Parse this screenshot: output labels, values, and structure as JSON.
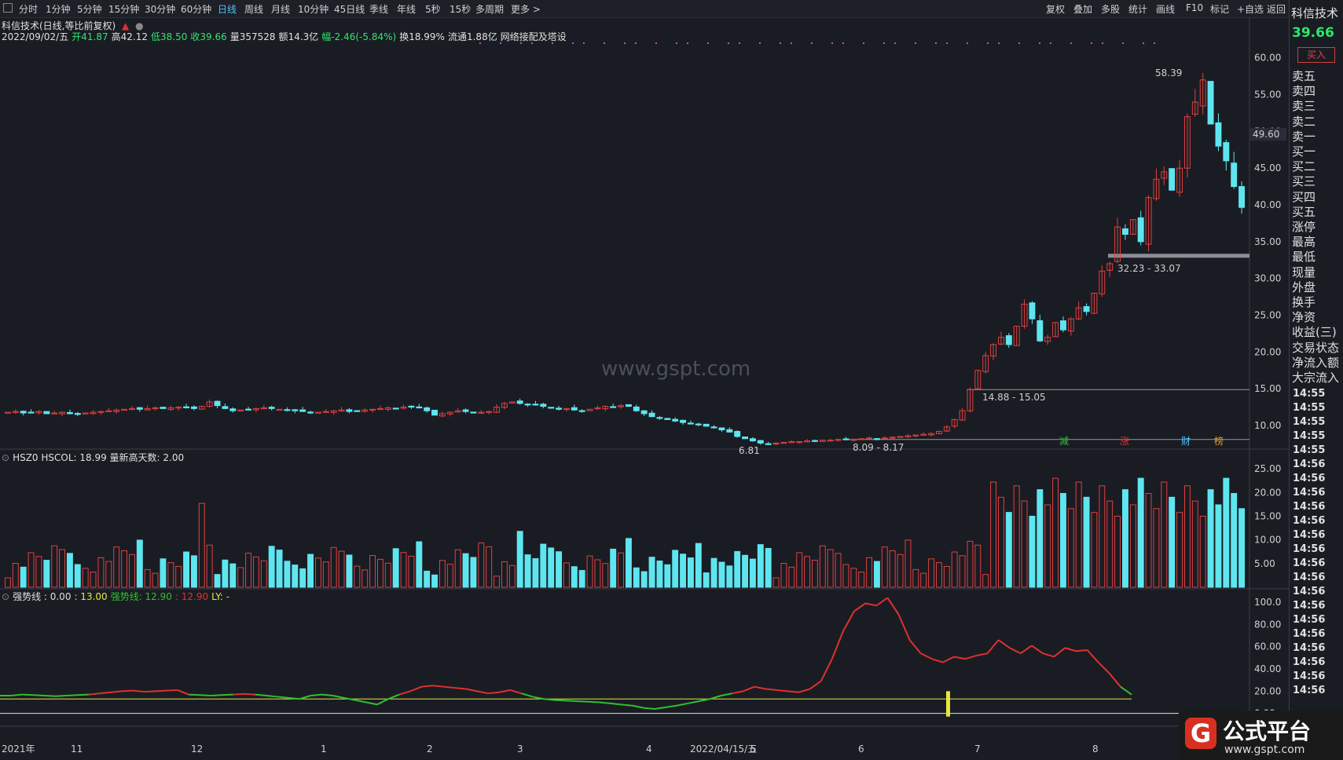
{
  "toolbar": {
    "periods": [
      "分时",
      "1分钟",
      "5分钟",
      "15分钟",
      "30分钟",
      "60分钟",
      "日线",
      "周线",
      "月线",
      "10分钟",
      "45日线",
      "季线",
      "年线",
      "5秒",
      "15秒",
      "多周期",
      "更多 >"
    ],
    "active_period": "日线",
    "right_tools": [
      "复权",
      "叠加",
      "多股",
      "统计",
      "画线",
      "F10",
      "标记",
      "+自选",
      "返回"
    ]
  },
  "stock": {
    "title": "科信技术(日线,等比前复权)",
    "date": "2022/09/02/五",
    "open_label": "开",
    "open": "41.87",
    "high_label": "高",
    "high": "42.12",
    "low_label": "低",
    "low": "38.50",
    "close_label": "收",
    "close": "39.66",
    "volume_label": "量",
    "volume": "357528",
    "amount_label": "额",
    "amount": "14.3亿",
    "change_label": "幅",
    "change": "-2.46(-5.84%)",
    "turnover_label": "换",
    "turnover": "18.99%",
    "float_label": "流通",
    "float": "1.88亿",
    "theme": "网络接配及塔设"
  },
  "main_chart": {
    "price_axis": [
      "60.00",
      "55.00",
      "50.00",
      "45.00",
      "40.00",
      "35.00",
      "30.00",
      "25.00",
      "20.00",
      "15.00",
      "10.00"
    ],
    "cursor_price": "49.60",
    "annotations": {
      "high_marker": "58.39",
      "low_marker": "6.81",
      "range_a": "8.09 - 8.17",
      "range_b": "14.88 - 15.05",
      "range_c": "32.23 - 33.07"
    },
    "event_tags": [
      "减",
      "涨",
      "财",
      "榜"
    ]
  },
  "volume_panel": {
    "header": "HSZ0  HSCOL: 18.99  量新高天数: 2.00",
    "axis": [
      "25.00",
      "20.00",
      "15.00",
      "10.00",
      "5.00"
    ]
  },
  "indicator_panel": {
    "header_a": "强势线 : 0.00",
    "header_b": ": 13.00",
    "header_c": "强势线: 12.90",
    "header_d": ": 12.90",
    "header_e": "LY: -",
    "axis": [
      "100.0",
      "80.00",
      "60.00",
      "40.00",
      "20.00",
      "0.00"
    ]
  },
  "time_axis": {
    "labels": [
      "2021年",
      "11",
      "12",
      "1",
      "2",
      "3",
      "4",
      "2022/04/15/五",
      "5",
      "6",
      "7",
      "8"
    ]
  },
  "right_panel": {
    "title": "科信技术",
    "price": "39.66",
    "buy_button": "买入",
    "labels": [
      "卖五",
      "卖四",
      "卖三",
      "卖二",
      "卖一",
      "买一",
      "买二",
      "买三",
      "买四",
      "买五",
      "涨停",
      "最高",
      "最低",
      "现量",
      "外盘",
      "换手",
      "净资",
      "收益(三)",
      "交易状态",
      "净流入额",
      "大宗流入"
    ],
    "times": [
      "14:55",
      "14:55",
      "14:55",
      "14:55",
      "14:55",
      "14:56",
      "14:56",
      "14:56",
      "14:56",
      "14:56",
      "14:56",
      "14:56",
      "14:56",
      "14:56",
      "14:56",
      "14:56",
      "14:56",
      "14:56",
      "14:56",
      "14:56",
      "14:56",
      "14:56"
    ]
  },
  "watermark": "www.gspt.com",
  "logo": {
    "name": "公式平台",
    "url": "www.gspt.com"
  },
  "colors": {
    "up": "#e04040",
    "down": "#5ee6f0",
    "strong_line": "#e03030",
    "weak_line": "#30c030",
    "accent": "#4fc3ff"
  },
  "chart_data": {
    "type": "candlestick",
    "price_range": [
      6.81,
      58.39
    ],
    "closes": [
      11.8,
      11.9,
      11.7,
      11.8,
      11.9,
      11.6,
      11.7,
      11.8,
      11.6,
      11.5,
      11.7,
      11.8,
      11.9,
      12.0,
      12.1,
      12.2,
      12.3,
      12.2,
      12.3,
      12.4,
      12.3,
      12.4,
      12.5,
      12.4,
      12.3,
      12.6,
      13.2,
      12.7,
      12.3,
      12.0,
      12.1,
      12.2,
      12.3,
      12.4,
      12.3,
      12.2,
      12.1,
      12.0,
      11.9,
      11.8,
      11.8,
      11.9,
      12.0,
      12.1,
      11.9,
      12.0,
      12.1,
      12.2,
      12.3,
      12.4,
      12.3,
      12.5,
      12.6,
      12.4,
      12.0,
      11.4,
      11.6,
      11.8,
      12.0,
      11.9,
      11.7,
      11.8,
      11.9,
      12.5,
      13.0,
      13.2,
      13.0,
      12.9,
      12.8,
      12.6,
      12.4,
      12.2,
      12.3,
      12.1,
      12.0,
      12.2,
      12.4,
      12.6,
      12.5,
      12.7,
      12.6,
      12.0,
      11.6,
      11.2,
      11.0,
      10.8,
      10.6,
      10.4,
      10.2,
      10.1,
      9.9,
      9.7,
      9.4,
      9.1,
      8.5,
      8.2,
      7.9,
      7.6,
      7.5,
      7.6,
      7.7,
      7.8,
      7.8,
      7.9,
      7.9,
      8.0,
      8.0,
      8.1,
      8.1,
      8.1,
      8.2,
      8.3,
      8.2,
      8.3,
      8.4,
      8.5,
      8.6,
      8.7,
      8.8,
      8.9,
      9.2,
      9.8,
      10.8,
      12.0,
      14.9,
      17.5,
      19.5,
      21.0,
      22.0,
      21.0,
      23.5,
      26.5,
      24.5,
      21.5,
      22.0,
      24.0,
      23.0,
      24.5,
      26.0,
      25.5,
      28.0,
      31.0,
      32.0,
      37.0,
      36.0,
      38.0,
      35.0,
      41.0,
      43.5,
      44.5,
      42.0,
      45.0,
      52.0,
      54.0,
      57.0,
      51.0,
      48.0,
      46.0,
      42.5,
      39.66
    ],
    "strength_line": [
      12.0,
      12.0,
      13.0,
      12.5,
      12.0,
      11.5,
      12.0,
      12.5,
      13.0,
      14.0,
      15.0,
      16.0,
      16.5,
      15.5,
      16.0,
      16.5,
      17.0,
      13.0,
      12.5,
      12.0,
      12.5,
      13.0,
      13.5,
      13.0,
      12.0,
      11.0,
      10.0,
      9.0,
      12.0,
      13.0,
      12.0,
      10.0,
      8.0,
      6.0,
      4.0,
      9.0,
      13.0,
      16.0,
      20.0,
      21.0,
      20.0,
      19.0,
      18.0,
      16.0,
      14.0,
      15.0,
      17.0,
      14.0,
      11.0,
      9.0,
      8.0,
      7.5,
      7.0,
      6.5,
      6.0,
      5.0,
      4.0,
      3.0,
      1.0,
      0.0,
      1.5,
      3.0,
      5.0,
      7.0,
      9.0,
      12.0,
      14.0,
      16.0,
      20.0,
      18.0,
      17.0,
      16.0,
      15.0,
      18.0,
      25.0,
      45.0,
      70.0,
      88.0,
      95.0,
      93.0,
      100.0,
      85.0,
      62.0,
      50.0,
      45.0,
      42.0,
      47.0,
      45.0,
      48.0,
      50.0,
      62.0,
      55.0,
      50.0,
      57.0,
      50.0,
      47.0,
      55.0,
      52.0,
      53.0,
      42.0,
      32.0,
      20.0,
      12.9
    ]
  }
}
